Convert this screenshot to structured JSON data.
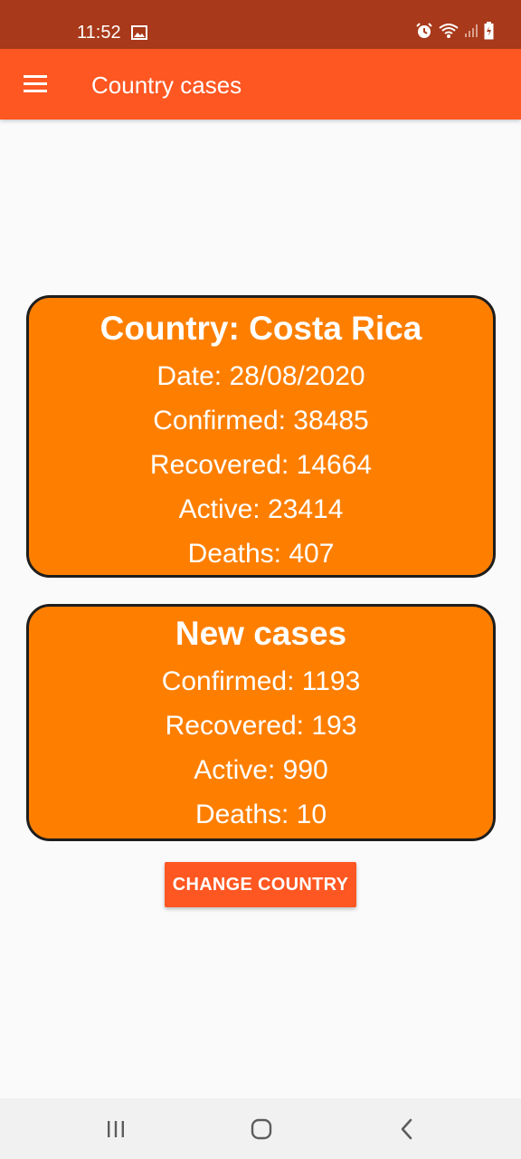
{
  "status_bar": {
    "time": "11:52",
    "icons": [
      "gallery-icon",
      "alarm-icon",
      "wifi-icon",
      "signal-icon",
      "battery-charging-icon"
    ]
  },
  "app_bar": {
    "title": "Country cases",
    "menu_icon": "hamburger-menu-icon"
  },
  "country_card": {
    "title": "Country: Costa Rica",
    "date": "Date: 28/08/2020",
    "confirmed": "Confirmed: 38485",
    "recovered": "Recovered: 14664",
    "active": "Active: 23414",
    "deaths": "Deaths: 407"
  },
  "new_cases_card": {
    "title": "New cases",
    "confirmed": "Confirmed: 1193",
    "recovered": "Recovered: 193",
    "active": "Active: 990",
    "deaths": "Deaths: 10"
  },
  "actions": {
    "change_country_label": "CHANGE COUNTRY"
  },
  "nav_bar": {
    "buttons": [
      "recent-apps-icon",
      "home-icon",
      "back-icon"
    ]
  },
  "colors": {
    "status_bar": "#a8391a",
    "app_bar": "#fe5722",
    "card": "#fe7f00",
    "card_border": "#1e1e1e",
    "button": "#fe5722",
    "background": "#fafafa"
  }
}
